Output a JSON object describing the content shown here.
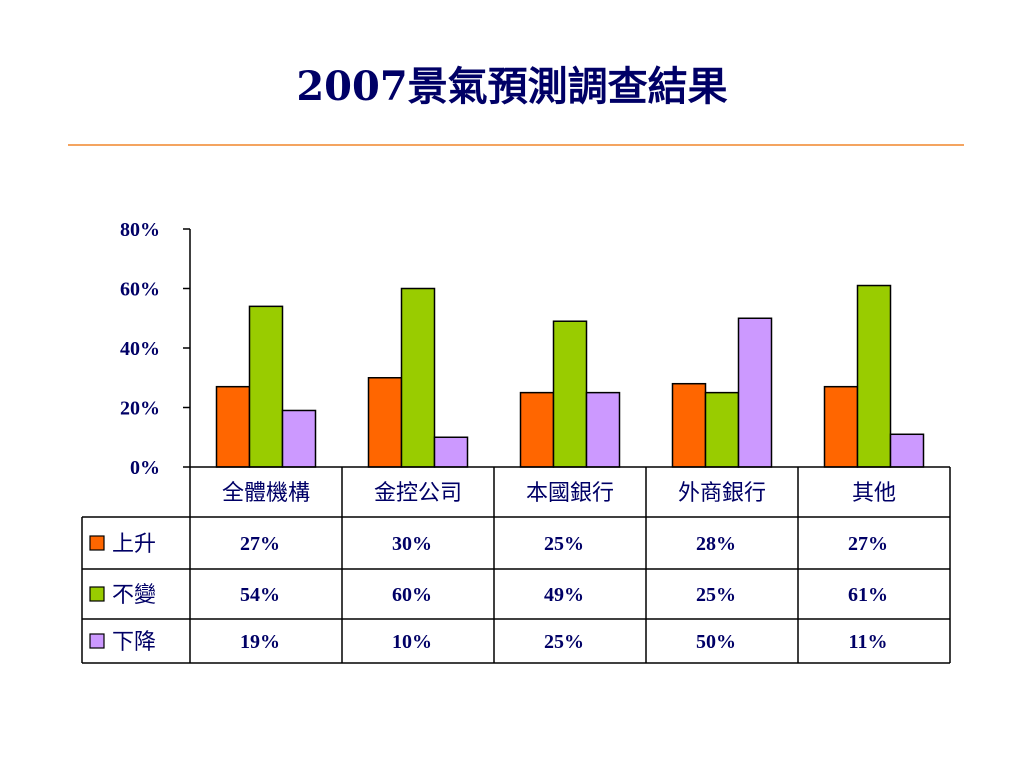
{
  "title": "2007景氣預測調查結果",
  "colors": {
    "up": "#FF6600",
    "same": "#99CC00",
    "down": "#CC99FF",
    "text": "#000066",
    "rule": "#F4A460"
  },
  "chart_data": {
    "type": "bar",
    "title": "2007景氣預測調查結果",
    "categories": [
      "全體機構",
      "金控公司",
      "本國銀行",
      "外商銀行",
      "其他"
    ],
    "series": [
      {
        "name": "上升",
        "values": [
          27,
          30,
          25,
          28,
          27
        ],
        "labels": [
          "27%",
          "30%",
          "25%",
          "28%",
          "27%"
        ]
      },
      {
        "name": "不變",
        "values": [
          54,
          60,
          49,
          25,
          61
        ],
        "labels": [
          "54%",
          "60%",
          "49%",
          "25%",
          "61%"
        ]
      },
      {
        "name": "下降",
        "values": [
          19,
          10,
          25,
          50,
          11
        ],
        "labels": [
          "19%",
          "10%",
          "25%",
          "50%",
          "11%"
        ]
      }
    ],
    "ylim": [
      0,
      80
    ],
    "yticks": [
      0,
      20,
      40,
      60,
      80
    ],
    "ytick_labels": [
      "0%",
      "20%",
      "40%",
      "60%",
      "80%"
    ],
    "grid": false,
    "legend": "data-table-left"
  }
}
